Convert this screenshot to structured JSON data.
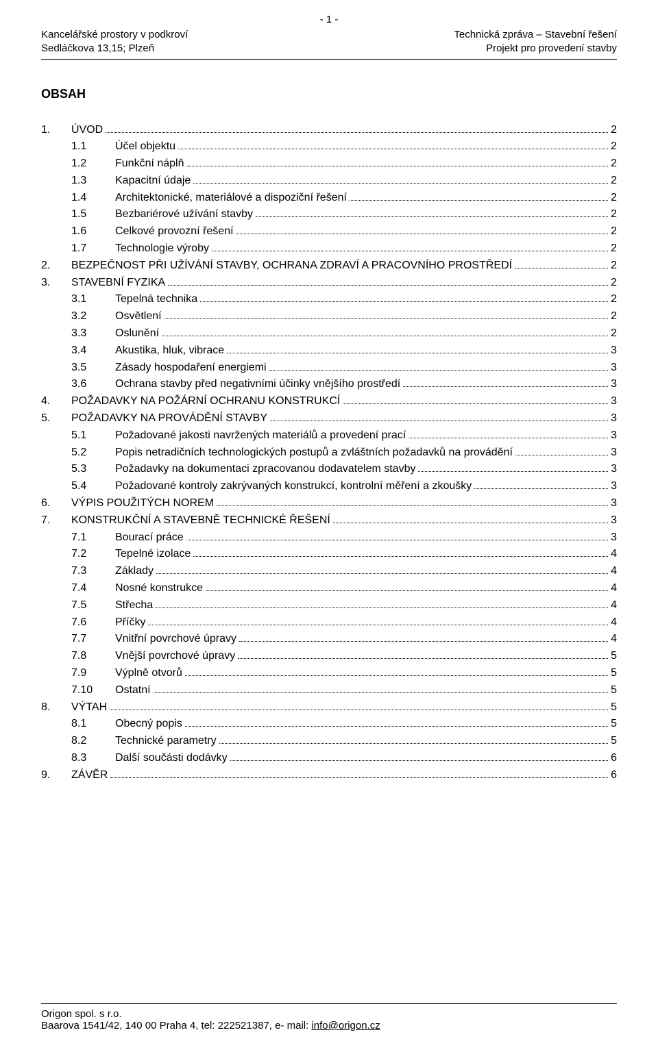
{
  "page_number_text": "- 1 -",
  "header": {
    "left_line1": "Kancelářské prostory v podkroví",
    "left_line2": "Sedláčkova 13,15; Plzeň",
    "right_line1": "Technická zpráva – Stavební řešení",
    "right_line2": "Projekt pro provedení stavby"
  },
  "obsah_title": "OBSAH",
  "toc": [
    {
      "level": 1,
      "num": "1.",
      "label": "ÚVOD",
      "page": "2"
    },
    {
      "level": 2,
      "num": "1.1",
      "label": "Účel objektu",
      "page": "2"
    },
    {
      "level": 2,
      "num": "1.2",
      "label": "Funkční náplň",
      "page": "2"
    },
    {
      "level": 2,
      "num": "1.3",
      "label": "Kapacitní údaje",
      "page": "2"
    },
    {
      "level": 2,
      "num": "1.4",
      "label": "Architektonické, materiálové a dispoziční řešení",
      "page": "2"
    },
    {
      "level": 2,
      "num": "1.5",
      "label": "Bezbariérové užívání stavby",
      "page": "2"
    },
    {
      "level": 2,
      "num": "1.6",
      "label": "Celkové provozní řešení",
      "page": "2"
    },
    {
      "level": 2,
      "num": "1.7",
      "label": "Technologie výroby",
      "page": "2"
    },
    {
      "level": 1,
      "num": "2.",
      "label": "BEZPEČNOST PŘI UŽÍVÁNÍ STAVBY, OCHRANA ZDRAVÍ A PRACOVNÍHO PROSTŘEDÍ",
      "page": "2"
    },
    {
      "level": 1,
      "num": "3.",
      "label": "STAVEBNÍ FYZIKA",
      "page": "2"
    },
    {
      "level": 2,
      "num": "3.1",
      "label": "Tepelná technika",
      "page": "2"
    },
    {
      "level": 2,
      "num": "3.2",
      "label": "Osvětlení",
      "page": "2"
    },
    {
      "level": 2,
      "num": "3.3",
      "label": "Oslunění",
      "page": "2"
    },
    {
      "level": 2,
      "num": "3.4",
      "label": "Akustika, hluk, vibrace",
      "page": "3"
    },
    {
      "level": 2,
      "num": "3.5",
      "label": "Zásady hospodaření energiemi",
      "page": "3"
    },
    {
      "level": 2,
      "num": "3.6",
      "label": "Ochrana stavby před negativními účinky vnějšího prostředí",
      "page": "3"
    },
    {
      "level": 1,
      "num": "4.",
      "label": "POŽADAVKY NA POŽÁRNÍ OCHRANU KONSTRUKCÍ",
      "page": "3"
    },
    {
      "level": 1,
      "num": "5.",
      "label": "POŽADAVKY NA PROVÁDĚNÍ STAVBY",
      "page": "3"
    },
    {
      "level": 2,
      "num": "5.1",
      "label": "Požadované jakosti navržených materiálů a provedení prací",
      "page": "3"
    },
    {
      "level": 2,
      "num": "5.2",
      "label": "Popis netradičních technologických postupů a zvláštních požadavků na provádění",
      "page": "3"
    },
    {
      "level": 2,
      "num": "5.3",
      "label": "Požadavky na dokumentaci zpracovanou dodavatelem stavby",
      "page": "3"
    },
    {
      "level": 2,
      "num": "5.4",
      "label": "Požadované kontroly zakrývaných konstrukcí, kontrolní měření a zkoušky",
      "page": "3"
    },
    {
      "level": 1,
      "num": "6.",
      "label": "VÝPIS POUŽITÝCH NOREM",
      "page": "3"
    },
    {
      "level": 1,
      "num": "7.",
      "label": "KONSTRUKČNÍ A STAVEBNĚ TECHNICKÉ ŘEŠENÍ",
      "page": "3"
    },
    {
      "level": 2,
      "num": "7.1",
      "label": "Bourací práce",
      "page": "3"
    },
    {
      "level": 2,
      "num": "7.2",
      "label": "Tepelné izolace",
      "page": "4"
    },
    {
      "level": 2,
      "num": "7.3",
      "label": "Základy",
      "page": "4"
    },
    {
      "level": 2,
      "num": "7.4",
      "label": "Nosné konstrukce",
      "page": "4"
    },
    {
      "level": 2,
      "num": "7.5",
      "label": "Střecha",
      "page": "4"
    },
    {
      "level": 2,
      "num": "7.6",
      "label": "Příčky",
      "page": "4"
    },
    {
      "level": 2,
      "num": "7.7",
      "label": "Vnitřní povrchové úpravy",
      "page": "4"
    },
    {
      "level": 2,
      "num": "7.8",
      "label": "Vnější povrchové úpravy",
      "page": "5"
    },
    {
      "level": 2,
      "num": "7.9",
      "label": "Výplně otvorů",
      "page": "5"
    },
    {
      "level": 2,
      "num": "7.10",
      "label": "Ostatní",
      "page": "5"
    },
    {
      "level": 1,
      "num": "8.",
      "label": "VÝTAH",
      "page": "5"
    },
    {
      "level": 2,
      "num": "8.1",
      "label": "Obecný popis",
      "page": "5"
    },
    {
      "level": 2,
      "num": "8.2",
      "label": "Technické parametry",
      "page": "5"
    },
    {
      "level": 2,
      "num": "8.3",
      "label": "Další součásti dodávky",
      "page": "6"
    },
    {
      "level": 1,
      "num": "9.",
      "label": "ZÁVĚR",
      "page": "6"
    }
  ],
  "footer": {
    "line1": "Origon spol. s r.o.",
    "line2_prefix": "Baarova 1541/42, 140 00 Praha 4, tel: 222521387, e- mail: ",
    "email": "info@origon.cz"
  }
}
